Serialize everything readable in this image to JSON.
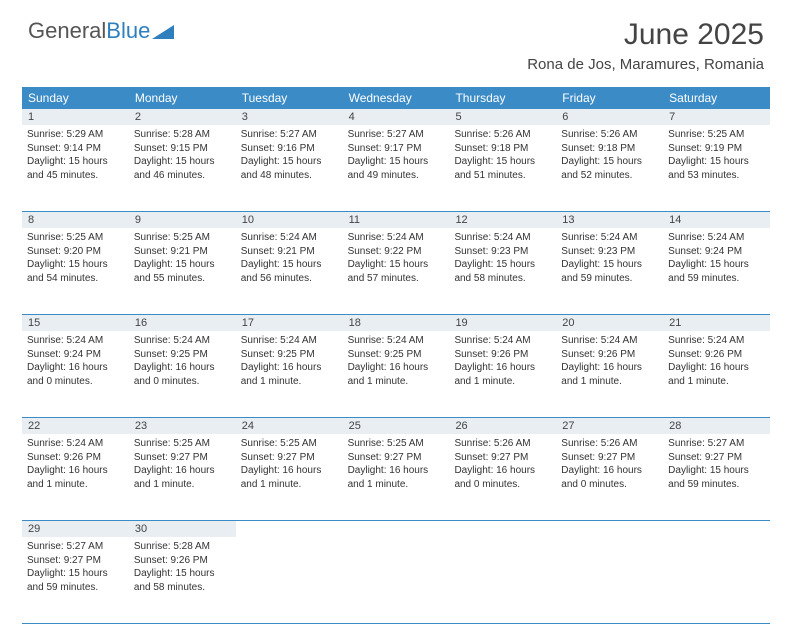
{
  "logo": {
    "text1": "General",
    "text2": "Blue"
  },
  "title": "June 2025",
  "location": "Rona de Jos, Maramures, Romania",
  "colors": {
    "header_bg": "#3b8bc7",
    "header_text": "#ffffff",
    "daynum_bg": "#e9eef2",
    "border": "#3b8bc7",
    "text": "#333333",
    "logo_gray": "#555555",
    "logo_blue": "#2f7fbf"
  },
  "day_headers": [
    "Sunday",
    "Monday",
    "Tuesday",
    "Wednesday",
    "Thursday",
    "Friday",
    "Saturday"
  ],
  "weeks": [
    [
      {
        "n": "1",
        "sr": "Sunrise: 5:29 AM",
        "ss": "Sunset: 9:14 PM",
        "d1": "Daylight: 15 hours",
        "d2": "and 45 minutes."
      },
      {
        "n": "2",
        "sr": "Sunrise: 5:28 AM",
        "ss": "Sunset: 9:15 PM",
        "d1": "Daylight: 15 hours",
        "d2": "and 46 minutes."
      },
      {
        "n": "3",
        "sr": "Sunrise: 5:27 AM",
        "ss": "Sunset: 9:16 PM",
        "d1": "Daylight: 15 hours",
        "d2": "and 48 minutes."
      },
      {
        "n": "4",
        "sr": "Sunrise: 5:27 AM",
        "ss": "Sunset: 9:17 PM",
        "d1": "Daylight: 15 hours",
        "d2": "and 49 minutes."
      },
      {
        "n": "5",
        "sr": "Sunrise: 5:26 AM",
        "ss": "Sunset: 9:18 PM",
        "d1": "Daylight: 15 hours",
        "d2": "and 51 minutes."
      },
      {
        "n": "6",
        "sr": "Sunrise: 5:26 AM",
        "ss": "Sunset: 9:18 PM",
        "d1": "Daylight: 15 hours",
        "d2": "and 52 minutes."
      },
      {
        "n": "7",
        "sr": "Sunrise: 5:25 AM",
        "ss": "Sunset: 9:19 PM",
        "d1": "Daylight: 15 hours",
        "d2": "and 53 minutes."
      }
    ],
    [
      {
        "n": "8",
        "sr": "Sunrise: 5:25 AM",
        "ss": "Sunset: 9:20 PM",
        "d1": "Daylight: 15 hours",
        "d2": "and 54 minutes."
      },
      {
        "n": "9",
        "sr": "Sunrise: 5:25 AM",
        "ss": "Sunset: 9:21 PM",
        "d1": "Daylight: 15 hours",
        "d2": "and 55 minutes."
      },
      {
        "n": "10",
        "sr": "Sunrise: 5:24 AM",
        "ss": "Sunset: 9:21 PM",
        "d1": "Daylight: 15 hours",
        "d2": "and 56 minutes."
      },
      {
        "n": "11",
        "sr": "Sunrise: 5:24 AM",
        "ss": "Sunset: 9:22 PM",
        "d1": "Daylight: 15 hours",
        "d2": "and 57 minutes."
      },
      {
        "n": "12",
        "sr": "Sunrise: 5:24 AM",
        "ss": "Sunset: 9:23 PM",
        "d1": "Daylight: 15 hours",
        "d2": "and 58 minutes."
      },
      {
        "n": "13",
        "sr": "Sunrise: 5:24 AM",
        "ss": "Sunset: 9:23 PM",
        "d1": "Daylight: 15 hours",
        "d2": "and 59 minutes."
      },
      {
        "n": "14",
        "sr": "Sunrise: 5:24 AM",
        "ss": "Sunset: 9:24 PM",
        "d1": "Daylight: 15 hours",
        "d2": "and 59 minutes."
      }
    ],
    [
      {
        "n": "15",
        "sr": "Sunrise: 5:24 AM",
        "ss": "Sunset: 9:24 PM",
        "d1": "Daylight: 16 hours",
        "d2": "and 0 minutes."
      },
      {
        "n": "16",
        "sr": "Sunrise: 5:24 AM",
        "ss": "Sunset: 9:25 PM",
        "d1": "Daylight: 16 hours",
        "d2": "and 0 minutes."
      },
      {
        "n": "17",
        "sr": "Sunrise: 5:24 AM",
        "ss": "Sunset: 9:25 PM",
        "d1": "Daylight: 16 hours",
        "d2": "and 1 minute."
      },
      {
        "n": "18",
        "sr": "Sunrise: 5:24 AM",
        "ss": "Sunset: 9:25 PM",
        "d1": "Daylight: 16 hours",
        "d2": "and 1 minute."
      },
      {
        "n": "19",
        "sr": "Sunrise: 5:24 AM",
        "ss": "Sunset: 9:26 PM",
        "d1": "Daylight: 16 hours",
        "d2": "and 1 minute."
      },
      {
        "n": "20",
        "sr": "Sunrise: 5:24 AM",
        "ss": "Sunset: 9:26 PM",
        "d1": "Daylight: 16 hours",
        "d2": "and 1 minute."
      },
      {
        "n": "21",
        "sr": "Sunrise: 5:24 AM",
        "ss": "Sunset: 9:26 PM",
        "d1": "Daylight: 16 hours",
        "d2": "and 1 minute."
      }
    ],
    [
      {
        "n": "22",
        "sr": "Sunrise: 5:24 AM",
        "ss": "Sunset: 9:26 PM",
        "d1": "Daylight: 16 hours",
        "d2": "and 1 minute."
      },
      {
        "n": "23",
        "sr": "Sunrise: 5:25 AM",
        "ss": "Sunset: 9:27 PM",
        "d1": "Daylight: 16 hours",
        "d2": "and 1 minute."
      },
      {
        "n": "24",
        "sr": "Sunrise: 5:25 AM",
        "ss": "Sunset: 9:27 PM",
        "d1": "Daylight: 16 hours",
        "d2": "and 1 minute."
      },
      {
        "n": "25",
        "sr": "Sunrise: 5:25 AM",
        "ss": "Sunset: 9:27 PM",
        "d1": "Daylight: 16 hours",
        "d2": "and 1 minute."
      },
      {
        "n": "26",
        "sr": "Sunrise: 5:26 AM",
        "ss": "Sunset: 9:27 PM",
        "d1": "Daylight: 16 hours",
        "d2": "and 0 minutes."
      },
      {
        "n": "27",
        "sr": "Sunrise: 5:26 AM",
        "ss": "Sunset: 9:27 PM",
        "d1": "Daylight: 16 hours",
        "d2": "and 0 minutes."
      },
      {
        "n": "28",
        "sr": "Sunrise: 5:27 AM",
        "ss": "Sunset: 9:27 PM",
        "d1": "Daylight: 15 hours",
        "d2": "and 59 minutes."
      }
    ],
    [
      {
        "n": "29",
        "sr": "Sunrise: 5:27 AM",
        "ss": "Sunset: 9:27 PM",
        "d1": "Daylight: 15 hours",
        "d2": "and 59 minutes."
      },
      {
        "n": "30",
        "sr": "Sunrise: 5:28 AM",
        "ss": "Sunset: 9:26 PM",
        "d1": "Daylight: 15 hours",
        "d2": "and 58 minutes."
      },
      null,
      null,
      null,
      null,
      null
    ]
  ]
}
